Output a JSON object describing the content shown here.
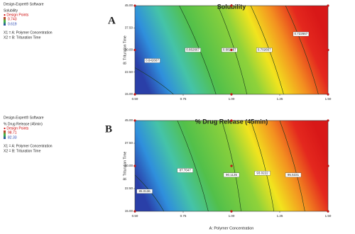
{
  "chart_data": [
    {
      "type": "contour",
      "panel_label": "A",
      "software": "Design-Expert® Software",
      "response": "Solubility",
      "design_points_label": "● Design Points",
      "legend_high": 0.743,
      "legend_low": 0.619,
      "x1_label": "X1 = A: Polymer Concentration",
      "x2_label": "X2 = B: Trituration Time",
      "title": "Solubility",
      "ylabel": "B: Trituration Time",
      "xlim": [
        0.5,
        1.5
      ],
      "ylim": [
        15,
        45
      ],
      "xticks": [
        {
          "value": 0.5,
          "label": "0.50"
        },
        {
          "value": 0.75,
          "label": "0.75"
        },
        {
          "value": 1,
          "label": "1.00"
        },
        {
          "value": 1.25,
          "label": "1.25"
        },
        {
          "value": 1.5,
          "label": "1.50"
        }
      ],
      "yticks": [
        {
          "value": 15,
          "label": "15.00"
        },
        {
          "value": 22.5,
          "label": "22.50"
        },
        {
          "value": 30,
          "label": "30.00"
        },
        {
          "value": 37.5,
          "label": "37.50"
        },
        {
          "value": 45,
          "label": "45.00"
        }
      ],
      "contour_levels": [
        0.642667,
        0.662667,
        0.682667,
        0.702667,
        0.722667
      ],
      "design_points": {
        "x": [
          0.5,
          1,
          1.5,
          0.5,
          1,
          1.5,
          0.5,
          1,
          1.5
        ],
        "y": [
          15,
          15,
          15,
          30,
          30,
          30,
          45,
          45,
          45
        ]
      }
    },
    {
      "type": "contour",
      "panel_label": "B",
      "software": "Design-Expert® Software",
      "response": "% Drug Release (45min)",
      "design_points_label": "● Design Points",
      "legend_high": 98.71,
      "legend_low": 82.33,
      "x1_label": "X1 = A: Polymer Concentration",
      "x2_label": "X2 = B: Trituration Time",
      "title": "% Drug Release (45min)",
      "ylabel": "B: Trituration Time",
      "xlabel": "A: Polymer Concentration",
      "xlim": [
        0.5,
        1.5
      ],
      "ylim": [
        15,
        45
      ],
      "xticks": [
        {
          "value": 0.5,
          "label": "0.50"
        },
        {
          "value": 0.75,
          "label": "0.75"
        },
        {
          "value": 1,
          "label": "1.00"
        },
        {
          "value": 1.25,
          "label": "1.25"
        },
        {
          "value": 1.5,
          "label": "1.50"
        }
      ],
      "yticks": [
        {
          "value": 15,
          "label": "15.00"
        },
        {
          "value": 22.5,
          "label": "22.50"
        },
        {
          "value": 30,
          "label": "30.00"
        },
        {
          "value": 37.5,
          "label": "37.50"
        },
        {
          "value": 45,
          "label": "45.00"
        }
      ],
      "contour_levels": [
        85.0136,
        87.7047,
        90.1135,
        93.0222,
        95.5331
      ],
      "design_points": {
        "x": [
          0.5,
          1,
          1.5,
          0.5,
          1,
          1.5,
          0.5,
          1,
          1.5
        ],
        "y": [
          15,
          15,
          15,
          30,
          30,
          30,
          45,
          45,
          45
        ]
      }
    }
  ]
}
